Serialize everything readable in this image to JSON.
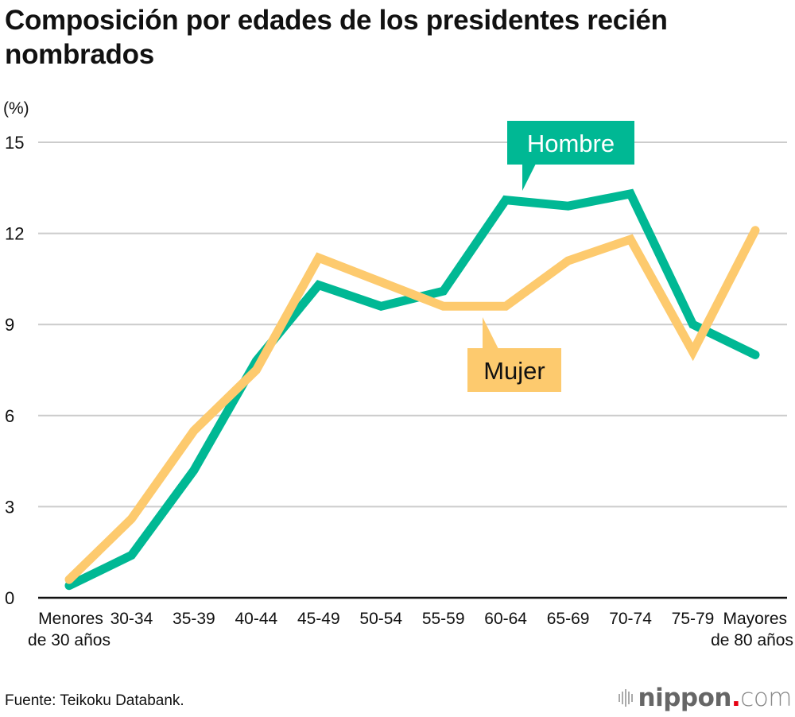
{
  "title": "Composición por edades de los presidentes recién nombrados",
  "source": "Fuente: Teikoku Databank.",
  "brand": {
    "name": "nippon",
    "dot": ".",
    "suffix": "com"
  },
  "colors": {
    "hombre": "#00b894",
    "mujer": "#fdca6e",
    "grid": "#cccccc",
    "axis": "#111111",
    "brand_dot": "#e60012"
  },
  "chart_data": {
    "type": "line",
    "title": "Composición por edades de los presidentes recién nombrados",
    "xlabel": "",
    "ylabel": "(%)",
    "ylim": [
      0,
      15
    ],
    "yticks": [
      0,
      3,
      6,
      9,
      12,
      15
    ],
    "grid": true,
    "categories": [
      [
        "Menores",
        "de 30 años"
      ],
      [
        "30-34"
      ],
      [
        "35-39"
      ],
      [
        "40-44"
      ],
      [
        "45-49"
      ],
      [
        "50-54"
      ],
      [
        "55-59"
      ],
      [
        "60-64"
      ],
      [
        "65-69"
      ],
      [
        "70-74"
      ],
      [
        "75-79"
      ],
      [
        "Mayores",
        "de 80 años"
      ]
    ],
    "series": [
      {
        "name": "Hombre",
        "color": "#00b894",
        "values": [
          0.4,
          1.4,
          4.2,
          7.8,
          10.3,
          9.6,
          10.1,
          13.1,
          12.9,
          13.3,
          9.0,
          8.0
        ]
      },
      {
        "name": "Mujer",
        "color": "#fdca6e",
        "values": [
          0.6,
          2.6,
          5.5,
          7.5,
          11.2,
          10.4,
          9.6,
          9.6,
          11.1,
          11.8,
          8.1,
          12.1
        ]
      }
    ],
    "legend": "inline-callouts"
  }
}
